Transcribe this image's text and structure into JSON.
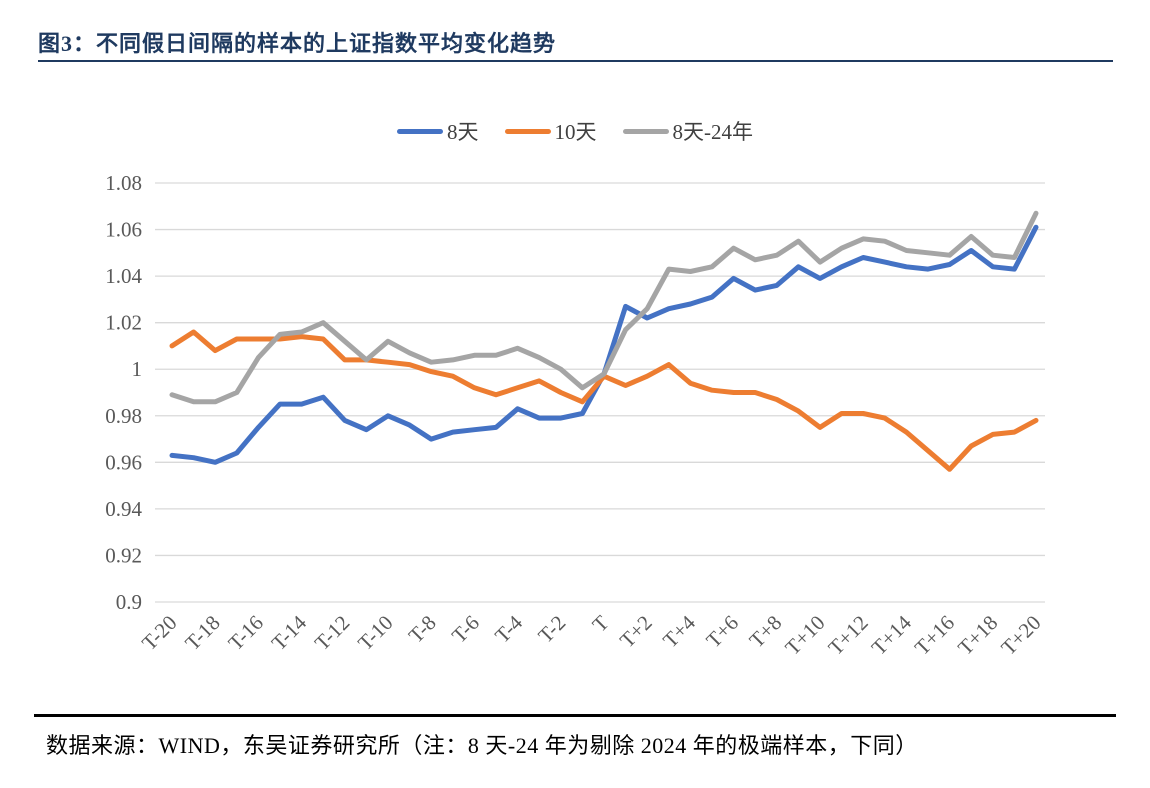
{
  "figure": {
    "title": "图3：不同假日间隔的样本的上证指数平均变化趋势"
  },
  "footer": {
    "source": "数据来源：WIND，东吴证券研究所（注：8 天-24 年为剔除 2024 年的极端样本，下同）"
  },
  "colors": {
    "title": "#1f3a60",
    "gridline": "#d9d9d9",
    "tick_label": "#595959",
    "footer_rule": "#000000"
  },
  "chart_data": {
    "type": "line",
    "title": "",
    "xlabel": "",
    "ylabel": "",
    "ylim": [
      0.9,
      1.08
    ],
    "ytick_step": 0.02,
    "ytick_labels": [
      "0.9",
      "0.92",
      "0.94",
      "0.96",
      "0.98",
      "1",
      "1.02",
      "1.04",
      "1.06",
      "1.08"
    ],
    "grid": true,
    "legend_position": "top",
    "xtick_interval": 2,
    "categories": [
      "T-20",
      "T-19",
      "T-18",
      "T-17",
      "T-16",
      "T-15",
      "T-14",
      "T-13",
      "T-12",
      "T-11",
      "T-10",
      "T-9",
      "T-8",
      "T-7",
      "T-6",
      "T-5",
      "T-4",
      "T-3",
      "T-2",
      "T-1",
      "T",
      "T+1",
      "T+2",
      "T+3",
      "T+4",
      "T+5",
      "T+6",
      "T+7",
      "T+8",
      "T+9",
      "T+10",
      "T+11",
      "T+12",
      "T+13",
      "T+14",
      "T+15",
      "T+16",
      "T+17",
      "T+18",
      "T+19",
      "T+20"
    ],
    "series": [
      {
        "name": "8天",
        "color": "#4472c4",
        "values": [
          0.963,
          0.962,
          0.96,
          0.964,
          0.975,
          0.985,
          0.985,
          0.988,
          0.978,
          0.974,
          0.98,
          0.976,
          0.97,
          0.973,
          0.974,
          0.975,
          0.983,
          0.979,
          0.979,
          0.981,
          0.998,
          1.027,
          1.022,
          1.026,
          1.028,
          1.031,
          1.039,
          1.034,
          1.036,
          1.044,
          1.039,
          1.044,
          1.048,
          1.046,
          1.044,
          1.043,
          1.045,
          1.051,
          1.044,
          1.043,
          1.061
        ]
      },
      {
        "name": "10天",
        "color": "#ed7d31",
        "values": [
          1.01,
          1.016,
          1.008,
          1.013,
          1.013,
          1.013,
          1.014,
          1.013,
          1.004,
          1.004,
          1.003,
          1.002,
          0.999,
          0.997,
          0.992,
          0.989,
          0.992,
          0.995,
          0.99,
          0.986,
          0.997,
          0.993,
          0.997,
          1.002,
          0.994,
          0.991,
          0.99,
          0.99,
          0.987,
          0.982,
          0.975,
          0.981,
          0.981,
          0.979,
          0.973,
          0.965,
          0.957,
          0.967,
          0.972,
          0.973,
          0.978
        ]
      },
      {
        "name": "8天-24年",
        "color": "#a5a5a5",
        "values": [
          0.989,
          0.986,
          0.986,
          0.99,
          1.005,
          1.015,
          1.016,
          1.02,
          1.012,
          1.004,
          1.012,
          1.007,
          1.003,
          1.004,
          1.006,
          1.006,
          1.009,
          1.005,
          1.0,
          0.992,
          0.998,
          1.017,
          1.026,
          1.043,
          1.042,
          1.044,
          1.052,
          1.047,
          1.049,
          1.055,
          1.046,
          1.052,
          1.056,
          1.055,
          1.051,
          1.05,
          1.049,
          1.057,
          1.049,
          1.048,
          1.067
        ]
      }
    ]
  }
}
